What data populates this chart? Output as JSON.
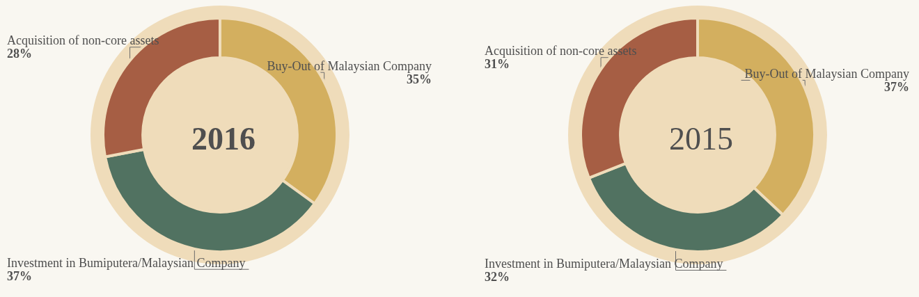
{
  "chart_data": [
    {
      "type": "donut",
      "title": "2016",
      "categories": [
        "Buy-Out of Malaysian Company",
        "Investment in Bumiputera/Malaysian Company",
        "Acquisition of non-core assets"
      ],
      "values": [
        35,
        37,
        28
      ],
      "value_labels": [
        "35%",
        "37%",
        "28%"
      ],
      "colors": [
        "#d3af5f",
        "#517261",
        "#a65e44"
      ]
    },
    {
      "type": "donut",
      "title": "2015",
      "categories": [
        "Buy-Out of Malaysian Company",
        "Investment in Bumiputera/Malaysian Company",
        "Acquisition of non-core assets"
      ],
      "values": [
        37,
        32,
        31
      ],
      "value_labels": [
        "37%",
        "32%",
        "31%"
      ],
      "colors": [
        "#d3af5f",
        "#517261",
        "#a65e44"
      ]
    }
  ]
}
